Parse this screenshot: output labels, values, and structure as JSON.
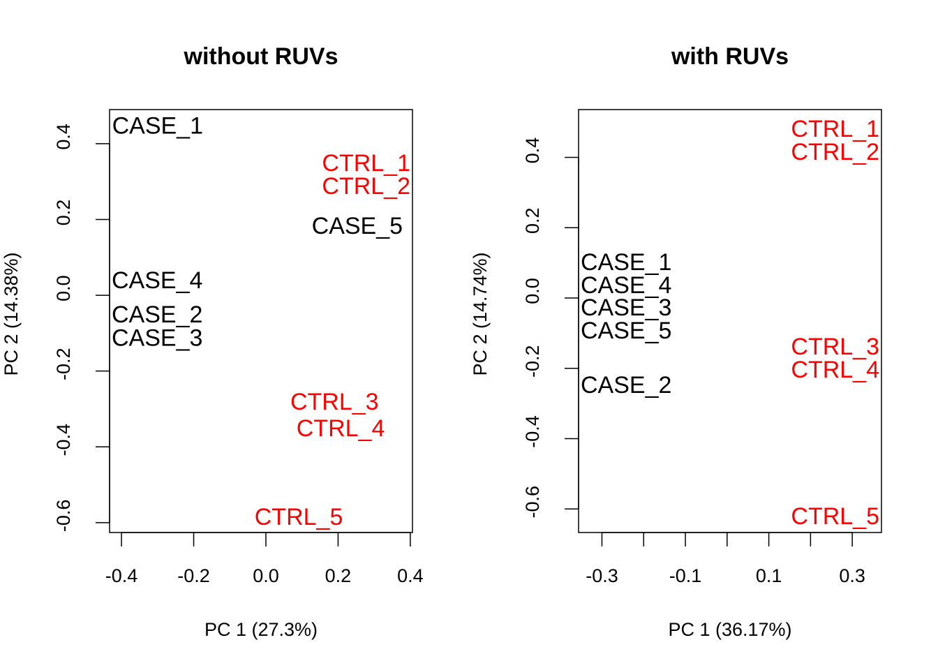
{
  "chart_data": [
    {
      "type": "scatter",
      "title": "without RUVs",
      "xlabel": "PC 1 (27.3%)",
      "ylabel": "PC 2 (14.38%)",
      "xlim": [
        -0.433,
        0.406
      ],
      "ylim": [
        -0.626,
        0.49
      ],
      "xticks": [
        -0.4,
        -0.2,
        0.0,
        0.2,
        0.4
      ],
      "xtick_labels": [
        "-0.4",
        "-0.2",
        "0.0",
        "0.2",
        "0.4"
      ],
      "yticks": [
        0.4,
        0.2,
        0.0,
        -0.2,
        -0.4,
        -0.6
      ],
      "ytick_labels": [
        "0.4",
        "0.2",
        "0.0",
        "-0.2",
        "-0.4",
        "-0.6"
      ],
      "grid": false,
      "points": [
        {
          "label": "CASE_1",
          "x": -0.3,
          "y": 0.449,
          "color": "#000000"
        },
        {
          "label": "CASE_2",
          "x": -0.394,
          "y": -0.05,
          "color": "#000000"
        },
        {
          "label": "CASE_3",
          "x": -0.404,
          "y": -0.052,
          "color": "#000000"
        },
        {
          "label": "CASE_4",
          "x": -0.404,
          "y": 0.041,
          "color": "#000000"
        },
        {
          "label": "CASE_5",
          "x": 0.253,
          "y": 0.184,
          "color": "#000000"
        },
        {
          "label": "CTRL_1",
          "x": 0.373,
          "y": 0.35,
          "color": "#FF0000"
        },
        {
          "label": "CTRL_2",
          "x": 0.369,
          "y": 0.308,
          "color": "#FF0000"
        },
        {
          "label": "CTRL_3",
          "x": 0.19,
          "y": -0.28,
          "color": "#FF0000"
        },
        {
          "label": "CTRL_4",
          "x": 0.207,
          "y": -0.35,
          "color": "#FF0000"
        },
        {
          "label": "CTRL_5",
          "x": 0.091,
          "y": -0.584,
          "color": "#FF0000"
        }
      ]
    },
    {
      "type": "scatter",
      "title": "with RUVs",
      "xlabel": "PC 1 (36.17%)",
      "ylabel": "PC 2 (14.74%)",
      "xlim": [
        -0.356,
        0.37
      ],
      "ylim": [
        -0.667,
        0.536
      ],
      "xticks": [
        -0.3,
        -0.2,
        -0.1,
        0.0,
        0.1,
        0.2,
        0.3
      ],
      "xtick_labels": [
        "-0.3",
        "",
        "-0.1",
        "",
        "0.1",
        "",
        "0.3"
      ],
      "yticks": [
        0.4,
        0.2,
        0.0,
        -0.2,
        -0.4,
        -0.6
      ],
      "ytick_labels": [
        "0.4",
        "0.2",
        "0.0",
        "-0.2",
        "-0.4",
        "-0.6"
      ],
      "grid": false,
      "points": [
        {
          "label": "CASE_1",
          "x": -0.333,
          "y": 0.103,
          "color": "#000000"
        },
        {
          "label": "CASE_2",
          "x": -0.304,
          "y": -0.246,
          "color": "#000000"
        },
        {
          "label": "CASE_3",
          "x": -0.328,
          "y": 0.069,
          "color": "#000000"
        },
        {
          "label": "CASE_4",
          "x": -0.304,
          "y": 0.085,
          "color": "#000000"
        },
        {
          "label": "CASE_5",
          "x": -0.316,
          "y": -0.06,
          "color": "#000000"
        },
        {
          "label": "CTRL_1",
          "x": 0.297,
          "y": 0.482,
          "color": "#FF0000"
        },
        {
          "label": "CTRL_2",
          "x": 0.297,
          "y": 0.476,
          "color": "#FF0000"
        },
        {
          "label": "CTRL_3",
          "x": 0.343,
          "y": -0.137,
          "color": "#FF0000"
        },
        {
          "label": "CTRL_4",
          "x": 0.305,
          "y": -0.155,
          "color": "#FF0000"
        },
        {
          "label": "CTRL_5",
          "x": 0.333,
          "y": -0.619,
          "color": "#FF0000"
        }
      ]
    }
  ]
}
